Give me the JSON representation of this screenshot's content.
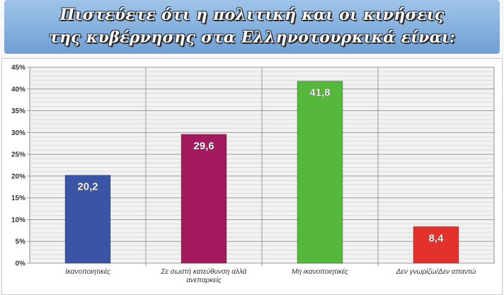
{
  "title": {
    "line1": "Πιστεύετε ότι η πολιτική και οι κινήσεις",
    "line2": "της κυβέρνησης στα Ελληνοτουρκικά είναι:"
  },
  "chart_data": {
    "type": "bar",
    "title": "Πιστεύετε ότι η πολιτική και οι κινήσεις της κυβέρνησης στα Ελληνοτουρκικά είναι:",
    "categories": [
      [
        "Ικανοποιητικές"
      ],
      [
        "Σε σωστή κατεύθυνση αλλά",
        "ανεπαρκείς"
      ],
      [
        "Μη ικανοποιητικές"
      ],
      [
        "Δεν γνωρίζω/Δεν απαντώ"
      ]
    ],
    "values": [
      20.2,
      29.6,
      41.8,
      8.4
    ],
    "value_labels": [
      "20,2",
      "29,6",
      "41,8",
      "8,4"
    ],
    "colors": [
      "#3b55a6",
      "#a31b5e",
      "#56b83a",
      "#e2322b"
    ],
    "ylim": [
      0,
      45
    ],
    "yticks": [
      0,
      5,
      10,
      15,
      20,
      25,
      30,
      35,
      40,
      45
    ],
    "ytick_labels": [
      "0%",
      "5%",
      "10%",
      "15%",
      "20%",
      "25%",
      "30%",
      "35%",
      "40%",
      "45%"
    ],
    "xlabel": "",
    "ylabel": "",
    "grid": true
  }
}
